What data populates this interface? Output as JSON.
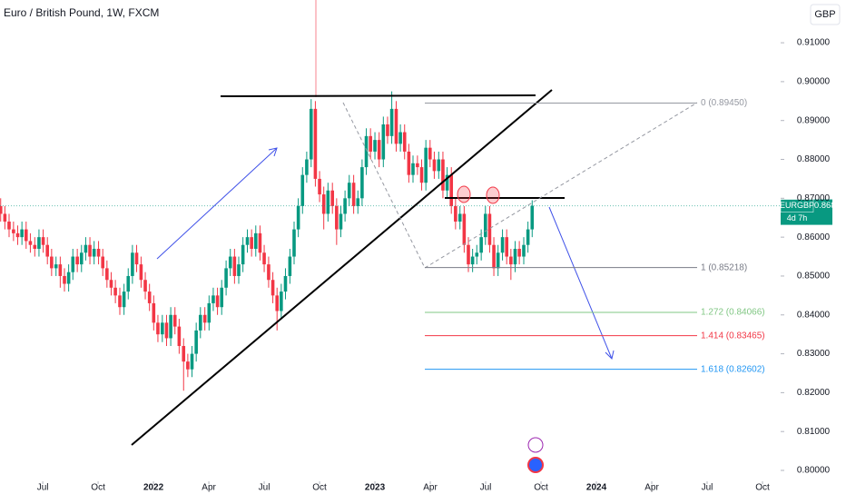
{
  "chart_data": {
    "type": "candlestick",
    "title": "Euro / British Pound, 1W, FXCM",
    "currency": "GBP",
    "symbol": "EURGBP",
    "countdown": "4d 7h",
    "up_color": "#089981",
    "down_color": "#f23645",
    "xlim": [
      2021.307,
      2024.832
    ],
    "xticks": [
      {
        "value": 2021.5,
        "label": "Jul"
      },
      {
        "value": 2021.75,
        "label": "Oct"
      },
      {
        "value": 2022,
        "label": "2022"
      },
      {
        "value": 2022.25,
        "label": "Apr"
      },
      {
        "value": 2022.5,
        "label": "Jul"
      },
      {
        "value": 2022.75,
        "label": "Oct"
      },
      {
        "value": 2023,
        "label": "2023"
      },
      {
        "value": 2023.25,
        "label": "Apr"
      },
      {
        "value": 2023.5,
        "label": "Jul"
      },
      {
        "value": 2023.75,
        "label": "Oct"
      },
      {
        "value": 2024,
        "label": "2024"
      },
      {
        "value": 2024.25,
        "label": "Apr"
      },
      {
        "value": 2024.5,
        "label": "Jul"
      },
      {
        "value": 2024.75,
        "label": "Oct"
      }
    ],
    "ylim": [
      0.7972,
      0.921
    ],
    "yticks": [
      {
        "value": 0.91,
        "label": "0.91000"
      },
      {
        "value": 0.9,
        "label": "0.90000"
      },
      {
        "value": 0.89,
        "label": "0.89000"
      },
      {
        "value": 0.88,
        "label": "0.88000"
      },
      {
        "value": 0.87,
        "label": "0.87000"
      },
      {
        "value": 0.86,
        "label": "0.86000"
      },
      {
        "value": 0.85,
        "label": "0.85000"
      },
      {
        "value": 0.84,
        "label": "0.84000"
      },
      {
        "value": 0.83,
        "label": "0.83000"
      },
      {
        "value": 0.82,
        "label": "0.82000"
      },
      {
        "value": 0.81,
        "label": "0.81000"
      },
      {
        "value": 0.8,
        "label": "0.80000"
      }
    ],
    "fib_levels": [
      {
        "label": "0 (0.89450)",
        "value": 0.8945,
        "color": "#9598a1"
      },
      {
        "label": "1 (0.85218)",
        "value": 0.85218,
        "color": "#787b86"
      },
      {
        "label": "1.272 (0.84066)",
        "value": 0.84066,
        "color": "#81c784"
      },
      {
        "label": "1.414 (0.83465)",
        "value": 0.83465,
        "color": "#f23645"
      },
      {
        "label": "1.618 (0.82602)",
        "value": 0.82602,
        "color": "#2196f3"
      }
    ],
    "x": [
      2021.31,
      2021.329,
      2021.348,
      2021.368,
      2021.387,
      2021.406,
      2021.425,
      2021.444,
      2021.464,
      2021.483,
      2021.502,
      2021.521,
      2021.54,
      2021.56,
      2021.579,
      2021.598,
      2021.617,
      2021.636,
      2021.656,
      2021.675,
      2021.694,
      2021.713,
      2021.732,
      2021.752,
      2021.771,
      2021.79,
      2021.809,
      2021.828,
      2021.848,
      2021.867,
      2021.886,
      2021.905,
      2021.924,
      2021.944,
      2021.963,
      2021.982,
      2022.001,
      2022.02,
      2022.04,
      2022.059,
      2022.078,
      2022.097,
      2022.116,
      2022.136,
      2022.155,
      2022.174,
      2022.193,
      2022.212,
      2022.232,
      2022.251,
      2022.27,
      2022.289,
      2022.308,
      2022.328,
      2022.347,
      2022.366,
      2022.385,
      2022.404,
      2022.424,
      2022.443,
      2022.462,
      2022.481,
      2022.5,
      2022.52,
      2022.539,
      2022.558,
      2022.577,
      2022.596,
      2022.616,
      2022.635,
      2022.654,
      2022.673,
      2022.692,
      2022.712,
      2022.731,
      2022.75,
      2022.769,
      2022.788,
      2022.808,
      2022.827,
      2022.846,
      2022.865,
      2022.884,
      2022.904,
      2022.923,
      2022.942,
      2022.961,
      2022.98,
      2023.0,
      2023.019,
      2023.038,
      2023.057,
      2023.076,
      2023.096,
      2023.115,
      2023.134,
      2023.153,
      2023.172,
      2023.192,
      2023.211,
      2023.23,
      2023.249,
      2023.268,
      2023.288,
      2023.307,
      2023.326,
      2023.345,
      2023.364,
      2023.384,
      2023.403,
      2023.422,
      2023.441,
      2023.46,
      2023.48,
      2023.499,
      2023.518,
      2023.537,
      2023.556,
      2023.576,
      2023.595,
      2023.614,
      2023.633,
      2023.652,
      2023.672,
      2023.691,
      2023.71
    ],
    "ohlc": [
      [
        0.868,
        0.87,
        0.864,
        0.866
      ],
      [
        0.866,
        0.868,
        0.862,
        0.864
      ],
      [
        0.864,
        0.866,
        0.86,
        0.862
      ],
      [
        0.862,
        0.864,
        0.859,
        0.861
      ],
      [
        0.861,
        0.863,
        0.858,
        0.86
      ],
      [
        0.86,
        0.864,
        0.858,
        0.862
      ],
      [
        0.862,
        0.864,
        0.857,
        0.859
      ],
      [
        0.859,
        0.861,
        0.856,
        0.858
      ],
      [
        0.858,
        0.86,
        0.855,
        0.857
      ],
      [
        0.857,
        0.862,
        0.855,
        0.86
      ],
      [
        0.86,
        0.862,
        0.856,
        0.858
      ],
      [
        0.858,
        0.86,
        0.853,
        0.855
      ],
      [
        0.855,
        0.857,
        0.85,
        0.852
      ],
      [
        0.852,
        0.855,
        0.85,
        0.853
      ],
      [
        0.853,
        0.855,
        0.847,
        0.85
      ],
      [
        0.85,
        0.852,
        0.846,
        0.848
      ],
      [
        0.848,
        0.853,
        0.846,
        0.851
      ],
      [
        0.851,
        0.857,
        0.849,
        0.855
      ],
      [
        0.855,
        0.857,
        0.851,
        0.853
      ],
      [
        0.853,
        0.858,
        0.851,
        0.856
      ],
      [
        0.856,
        0.86,
        0.854,
        0.858
      ],
      [
        0.858,
        0.86,
        0.853,
        0.855
      ],
      [
        0.855,
        0.859,
        0.853,
        0.857
      ],
      [
        0.857,
        0.859,
        0.853,
        0.855
      ],
      [
        0.855,
        0.857,
        0.85,
        0.852
      ],
      [
        0.852,
        0.854,
        0.847,
        0.849
      ],
      [
        0.849,
        0.851,
        0.845,
        0.847
      ],
      [
        0.847,
        0.849,
        0.843,
        0.845
      ],
      [
        0.845,
        0.847,
        0.84,
        0.842
      ],
      [
        0.842,
        0.848,
        0.84,
        0.846
      ],
      [
        0.846,
        0.852,
        0.844,
        0.85
      ],
      [
        0.85,
        0.858,
        0.848,
        0.856
      ],
      [
        0.856,
        0.858,
        0.851,
        0.853
      ],
      [
        0.853,
        0.855,
        0.847,
        0.849
      ],
      [
        0.849,
        0.851,
        0.844,
        0.846
      ],
      [
        0.846,
        0.848,
        0.841,
        0.843
      ],
      [
        0.843,
        0.845,
        0.836,
        0.838
      ],
      [
        0.838,
        0.84,
        0.833,
        0.835
      ],
      [
        0.835,
        0.84,
        0.833,
        0.838
      ],
      [
        0.838,
        0.84,
        0.832,
        0.834
      ],
      [
        0.834,
        0.842,
        0.832,
        0.84
      ],
      [
        0.84,
        0.842,
        0.835,
        0.837
      ],
      [
        0.837,
        0.839,
        0.83,
        0.832
      ],
      [
        0.832,
        0.834,
        0.8205,
        0.828
      ],
      [
        0.828,
        0.83,
        0.824,
        0.826
      ],
      [
        0.826,
        0.832,
        0.824,
        0.83
      ],
      [
        0.83,
        0.838,
        0.828,
        0.836
      ],
      [
        0.836,
        0.842,
        0.834,
        0.84
      ],
      [
        0.84,
        0.842,
        0.836,
        0.838
      ],
      [
        0.838,
        0.845,
        0.836,
        0.843
      ],
      [
        0.843,
        0.847,
        0.841,
        0.845
      ],
      [
        0.845,
        0.847,
        0.84,
        0.842
      ],
      [
        0.842,
        0.849,
        0.84,
        0.847
      ],
      [
        0.847,
        0.854,
        0.845,
        0.852
      ],
      [
        0.852,
        0.857,
        0.85,
        0.855
      ],
      [
        0.855,
        0.857,
        0.848,
        0.85
      ],
      [
        0.85,
        0.855,
        0.848,
        0.853
      ],
      [
        0.853,
        0.86,
        0.851,
        0.858
      ],
      [
        0.858,
        0.862,
        0.856,
        0.86
      ],
      [
        0.86,
        0.862,
        0.855,
        0.857
      ],
      [
        0.857,
        0.863,
        0.855,
        0.861
      ],
      [
        0.861,
        0.863,
        0.854,
        0.856
      ],
      [
        0.856,
        0.858,
        0.851,
        0.853
      ],
      [
        0.853,
        0.855,
        0.847,
        0.849
      ],
      [
        0.849,
        0.851,
        0.843,
        0.845
      ],
      [
        0.845,
        0.847,
        0.836,
        0.841
      ],
      [
        0.841,
        0.848,
        0.839,
        0.846
      ],
      [
        0.846,
        0.852,
        0.844,
        0.85
      ],
      [
        0.85,
        0.857,
        0.848,
        0.855
      ],
      [
        0.855,
        0.864,
        0.853,
        0.862
      ],
      [
        0.862,
        0.87,
        0.86,
        0.868
      ],
      [
        0.868,
        0.878,
        0.866,
        0.876
      ],
      [
        0.876,
        0.882,
        0.874,
        0.88
      ],
      [
        0.88,
        0.8955,
        0.878,
        0.893
      ],
      [
        0.893,
        0.895,
        0.873,
        0.875
      ],
      [
        0.875,
        0.877,
        0.869,
        0.871
      ],
      [
        0.871,
        0.873,
        0.862,
        0.866
      ],
      [
        0.866,
        0.874,
        0.864,
        0.872
      ],
      [
        0.872,
        0.874,
        0.866,
        0.868
      ],
      [
        0.868,
        0.87,
        0.858,
        0.862
      ],
      [
        0.862,
        0.868,
        0.86,
        0.866
      ],
      [
        0.866,
        0.872,
        0.864,
        0.87
      ],
      [
        0.87,
        0.876,
        0.868,
        0.874
      ],
      [
        0.874,
        0.876,
        0.866,
        0.868
      ],
      [
        0.868,
        0.872,
        0.866,
        0.87
      ],
      [
        0.87,
        0.88,
        0.868,
        0.878
      ],
      [
        0.878,
        0.888,
        0.876,
        0.886
      ],
      [
        0.886,
        0.888,
        0.88,
        0.882
      ],
      [
        0.882,
        0.887,
        0.88,
        0.885
      ],
      [
        0.885,
        0.887,
        0.878,
        0.88
      ],
      [
        0.88,
        0.891,
        0.878,
        0.889
      ],
      [
        0.889,
        0.891,
        0.884,
        0.886
      ],
      [
        0.886,
        0.8975,
        0.884,
        0.893
      ],
      [
        0.893,
        0.895,
        0.882,
        0.884
      ],
      [
        0.884,
        0.889,
        0.882,
        0.887
      ],
      [
        0.887,
        0.889,
        0.88,
        0.882
      ],
      [
        0.882,
        0.884,
        0.874,
        0.876
      ],
      [
        0.876,
        0.881,
        0.874,
        0.879
      ],
      [
        0.879,
        0.881,
        0.876,
        0.878
      ],
      [
        0.878,
        0.88,
        0.872,
        0.874
      ],
      [
        0.874,
        0.885,
        0.872,
        0.883
      ],
      [
        0.883,
        0.885,
        0.878,
        0.88
      ],
      [
        0.88,
        0.882,
        0.875,
        0.877
      ],
      [
        0.877,
        0.882,
        0.875,
        0.88
      ],
      [
        0.88,
        0.882,
        0.87,
        0.872
      ],
      [
        0.872,
        0.878,
        0.87,
        0.876
      ],
      [
        0.876,
        0.878,
        0.866,
        0.868
      ],
      [
        0.868,
        0.87,
        0.862,
        0.864
      ],
      [
        0.864,
        0.868,
        0.862,
        0.866
      ],
      [
        0.866,
        0.868,
        0.856,
        0.858
      ],
      [
        0.858,
        0.86,
        0.851,
        0.853
      ],
      [
        0.853,
        0.857,
        0.851,
        0.855
      ],
      [
        0.855,
        0.858,
        0.853,
        0.856
      ],
      [
        0.856,
        0.862,
        0.854,
        0.86
      ],
      [
        0.86,
        0.868,
        0.858,
        0.866
      ],
      [
        0.866,
        0.868,
        0.856,
        0.858
      ],
      [
        0.858,
        0.86,
        0.85,
        0.852
      ],
      [
        0.852,
        0.858,
        0.85,
        0.856
      ],
      [
        0.856,
        0.862,
        0.854,
        0.86
      ],
      [
        0.86,
        0.862,
        0.853,
        0.855
      ],
      [
        0.855,
        0.857,
        0.849,
        0.853
      ],
      [
        0.853,
        0.859,
        0.851,
        0.857
      ],
      [
        0.857,
        0.859,
        0.853,
        0.855
      ],
      [
        0.855,
        0.86,
        0.853,
        0.858
      ],
      [
        0.858,
        0.864,
        0.856,
        0.862
      ],
      [
        0.862,
        0.8695,
        0.86,
        0.86807
      ]
    ]
  }
}
